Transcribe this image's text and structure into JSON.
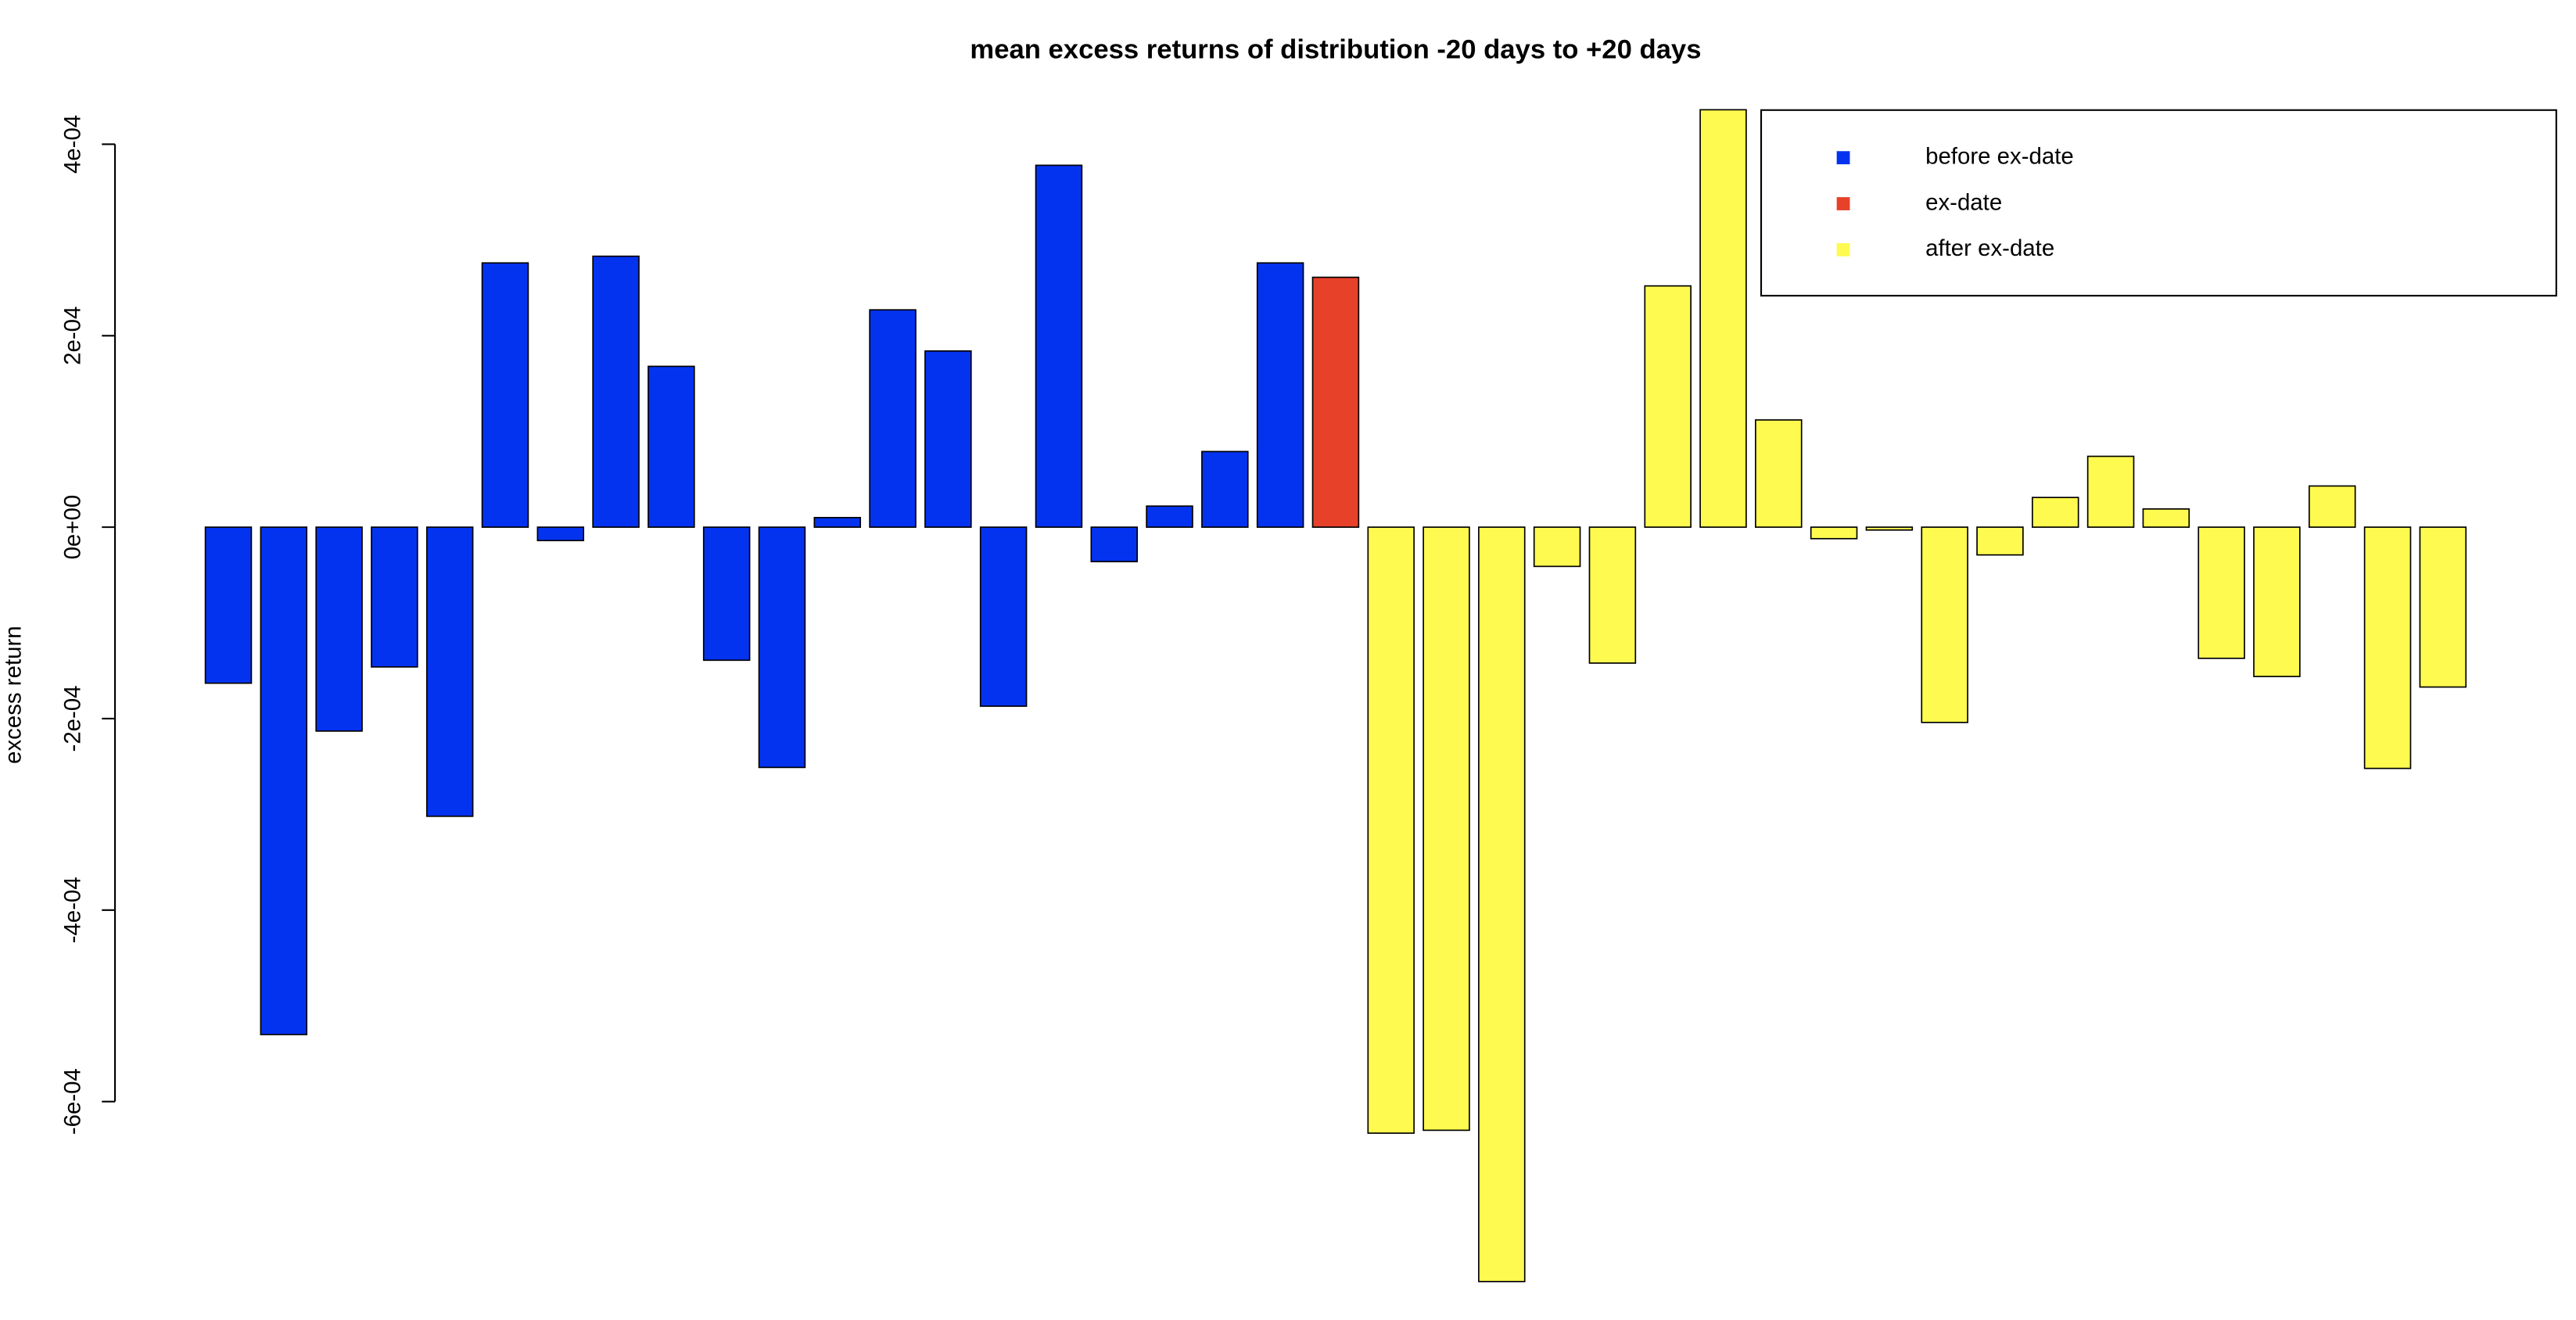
{
  "chart_data": {
    "type": "bar",
    "title": "mean excess returns of distribution -20 days to +20 days",
    "y_label": "excess return",
    "categories": [
      null,
      null,
      null,
      null,
      null,
      null,
      null,
      null,
      null,
      null,
      null,
      null,
      null,
      null,
      null,
      null,
      null,
      null,
      null,
      null,
      null,
      null,
      null,
      null,
      null,
      null,
      null,
      null,
      null,
      null,
      null,
      null,
      null,
      null,
      null,
      null,
      null,
      null,
      null,
      null,
      null
    ],
    "series": [
      {
        "name": "before ex-date",
        "color": "#0433f0",
        "values": [
          -0.000163,
          -0.00053,
          -0.000213,
          -0.000146,
          -0.000302,
          0.000276,
          -1.4e-05,
          0.000283,
          0.000168,
          -0.000139,
          -0.000251,
          1e-05,
          0.000227,
          0.000184,
          -0.000187,
          0.000378,
          -3.6e-05,
          2.2e-05,
          7.9e-05,
          0.000276,
          null,
          null,
          null,
          null,
          null,
          null,
          null,
          null,
          null,
          null,
          null,
          null,
          null,
          null,
          null,
          null,
          null,
          null,
          null,
          null,
          null
        ]
      },
      {
        "name": "ex-date",
        "color": "#e8412a",
        "values": [
          null,
          null,
          null,
          null,
          null,
          null,
          null,
          null,
          null,
          null,
          null,
          null,
          null,
          null,
          null,
          null,
          null,
          null,
          null,
          null,
          0.000261,
          null,
          null,
          null,
          null,
          null,
          null,
          null,
          null,
          null,
          null,
          null,
          null,
          null,
          null,
          null,
          null,
          null,
          null,
          null,
          null
        ]
      },
      {
        "name": "after ex-date",
        "color": "#fffa50",
        "values": [
          null,
          null,
          null,
          null,
          null,
          null,
          null,
          null,
          null,
          null,
          null,
          null,
          null,
          null,
          null,
          null,
          null,
          null,
          null,
          null,
          null,
          -0.000633,
          -0.00063,
          -0.000788,
          -4.1e-05,
          -0.000142,
          0.000252,
          0.000436,
          0.000112,
          -1.2e-05,
          -3e-06,
          -0.000204,
          -2.9e-05,
          3.1e-05,
          7.4e-05,
          1.9e-05,
          -0.000137,
          -0.000156,
          4.3e-05,
          -0.000252,
          -0.000167
        ]
      }
    ],
    "ylim": [
      -0.000805,
      0.000482
    ],
    "yticks": [
      {
        "value": -0.0006,
        "label": "-6e-04"
      },
      {
        "value": -0.0004,
        "label": "-4e-04"
      },
      {
        "value": -0.0002,
        "label": "-2e-04"
      },
      {
        "value": 0,
        "label": "0e+00"
      },
      {
        "value": 0.0002,
        "label": "2e-04"
      },
      {
        "value": 0.0004,
        "label": "4e-04"
      }
    ],
    "legend": "top-right"
  }
}
